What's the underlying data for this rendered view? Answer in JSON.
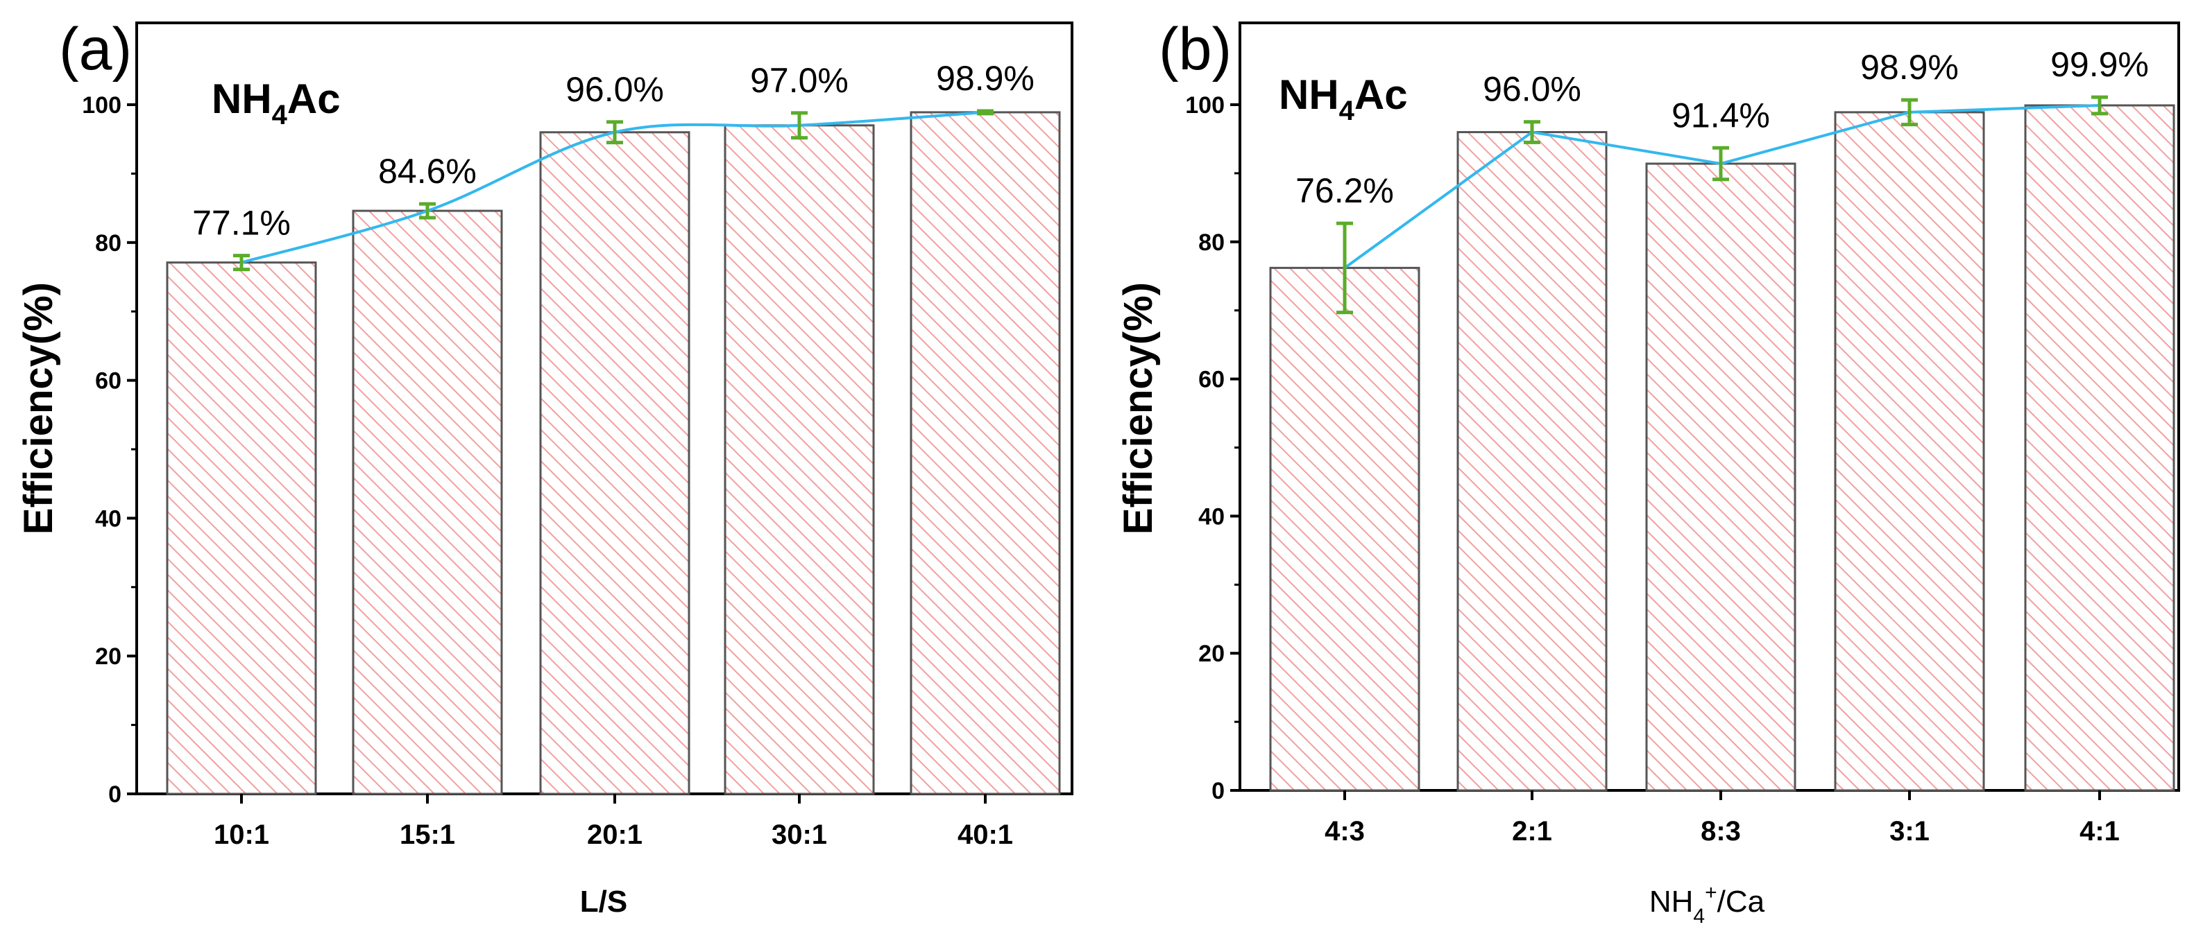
{
  "chart_data": [
    {
      "type": "bar",
      "panel_label": "(a)",
      "annotation": {
        "main": "NH",
        "sub": "4",
        "tail": "Ac"
      },
      "categories": [
        "10:1",
        "15:1",
        "20:1",
        "30:1",
        "40:1"
      ],
      "values": [
        77.1,
        84.6,
        96.0,
        97.0,
        98.9
      ],
      "errors": [
        1.0,
        1.0,
        1.5,
        1.8,
        0.2
      ],
      "data_labels": [
        "77.1%",
        "84.6%",
        "96.0%",
        "97.0%",
        "98.9%"
      ],
      "xlabel": "L/S",
      "ylabel": "Efficiency(%)",
      "ylim": [
        0,
        100
      ],
      "yticks": [
        0,
        20,
        40,
        60,
        80,
        100
      ],
      "overlay_line": "smooth",
      "grid": false,
      "colors": {
        "bar_edge": "#555555",
        "hatch": "#f2a0a0",
        "line": "#33b8ee",
        "error": "#5aac2a"
      }
    },
    {
      "type": "bar",
      "panel_label": "(b)",
      "annotation": {
        "main": "NH",
        "sub": "4",
        "tail": "Ac"
      },
      "categories": [
        "4:3",
        "2:1",
        "8:3",
        "3:1",
        "4:1"
      ],
      "values": [
        76.2,
        96.0,
        91.4,
        98.9,
        99.9
      ],
      "errors": [
        6.5,
        1.5,
        2.3,
        1.8,
        1.2
      ],
      "data_labels": [
        "76.2%",
        "96.0%",
        "91.4%",
        "98.9%",
        "99.9%"
      ],
      "xlabel": {
        "main": "NH",
        "sub": "4",
        "sup": "+",
        "tail": "/Ca"
      },
      "ylabel": "Efficiency(%)",
      "ylim": [
        0,
        100
      ],
      "yticks": [
        0,
        20,
        40,
        60,
        80,
        100
      ],
      "overlay_line": "straight",
      "grid": false,
      "colors": {
        "bar_edge": "#555555",
        "hatch": "#f2a0a0",
        "line": "#33b8ee",
        "error": "#5aac2a"
      }
    }
  ]
}
